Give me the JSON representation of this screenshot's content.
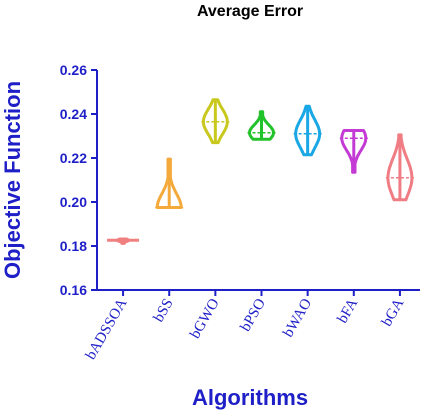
{
  "chart_data": {
    "type": "violin",
    "title": "Average Error",
    "xlabel": "Algorithms",
    "ylabel": "Objective Function",
    "ylim": [
      0.16,
      0.26
    ],
    "yticks": [
      "0.16",
      "0.18",
      "0.20",
      "0.22",
      "0.24",
      "0.26"
    ],
    "grid": false,
    "axis_color": "#1f1fc8",
    "series": [
      {
        "name": "bADSSOA",
        "color": "#f08080",
        "min": 0.1812,
        "max": 0.1832,
        "median": 0.1826
      },
      {
        "name": "bSS",
        "color": "#f4a93b",
        "min": 0.1975,
        "max": 0.2195,
        "median": 0.1975
      },
      {
        "name": "bGWO",
        "color": "#c8c81e",
        "min": 0.227,
        "max": 0.2465,
        "median": 0.2365
      },
      {
        "name": "bPSO",
        "color": "#22c22a",
        "min": 0.2285,
        "max": 0.241,
        "median": 0.2315
      },
      {
        "name": "bWAO",
        "color": "#1aa7e6",
        "min": 0.2215,
        "max": 0.2435,
        "median": 0.231
      },
      {
        "name": "bFA",
        "color": "#c43ad4",
        "min": 0.2135,
        "max": 0.2325,
        "median": 0.229
      },
      {
        "name": "bGA",
        "color": "#f07c84",
        "min": 0.201,
        "max": 0.2305,
        "median": 0.211
      }
    ]
  }
}
